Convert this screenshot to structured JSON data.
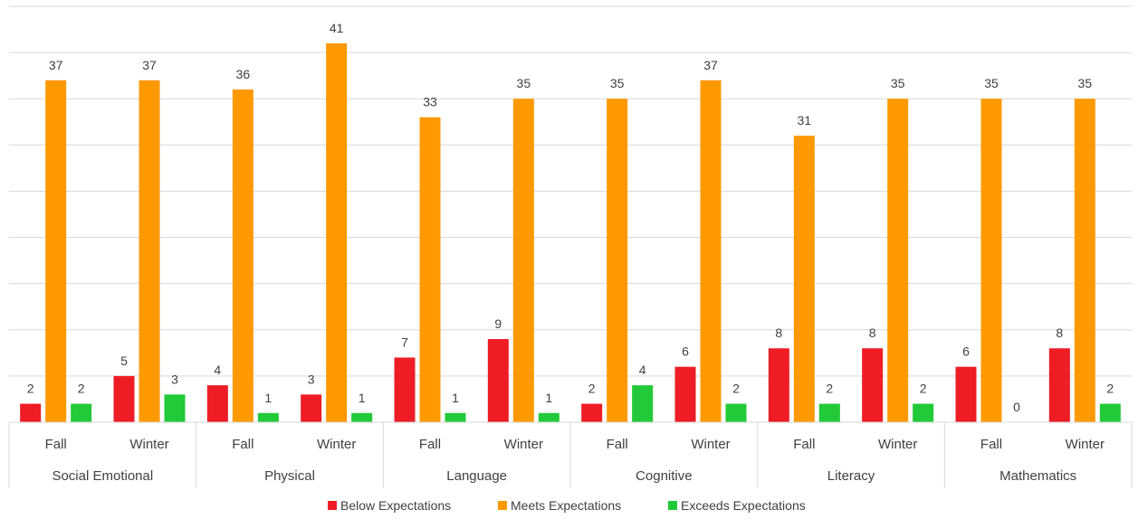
{
  "chart_data": {
    "type": "bar",
    "groups": [
      {
        "name": "Social Emotional",
        "categories": [
          "Fall",
          "Winter"
        ]
      },
      {
        "name": "Physical",
        "categories": [
          "Fall",
          "Winter"
        ]
      },
      {
        "name": "Language",
        "categories": [
          "Fall",
          "Winter"
        ]
      },
      {
        "name": "Cognitive",
        "categories": [
          "Fall",
          "Winter"
        ]
      },
      {
        "name": "Literacy",
        "categories": [
          "Fall",
          "Winter"
        ]
      },
      {
        "name": "Mathematics",
        "categories": [
          "Fall",
          "Winter"
        ]
      }
    ],
    "series": [
      {
        "name": "Below Expectations",
        "color": "#ee1c25",
        "values": [
          2,
          5,
          4,
          3,
          7,
          9,
          2,
          6,
          8,
          8,
          6,
          8
        ]
      },
      {
        "name": "Meets Expectations",
        "color": "#ff9900",
        "values": [
          37,
          37,
          36,
          41,
          33,
          35,
          35,
          37,
          31,
          35,
          35,
          35
        ]
      },
      {
        "name": "Exceeds Expectations",
        "color": "#22c938",
        "values": [
          2,
          3,
          1,
          1,
          1,
          1,
          4,
          2,
          2,
          2,
          0,
          2
        ]
      }
    ],
    "ylim": [
      0,
      45
    ],
    "grid": true,
    "legend_position": "bottom"
  }
}
